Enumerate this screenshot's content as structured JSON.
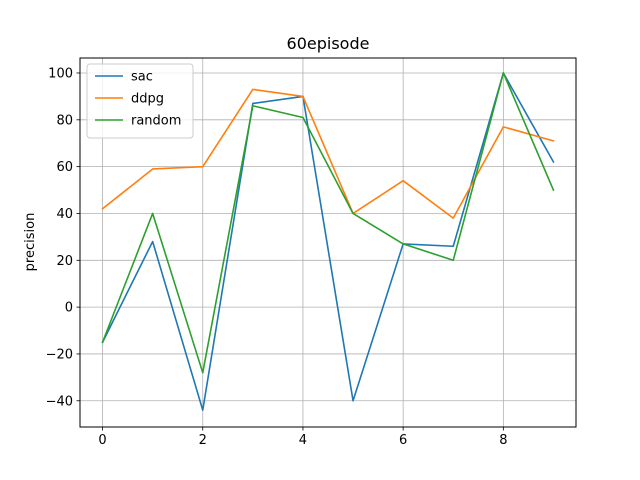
{
  "chart_data": {
    "type": "line",
    "title": "60episode",
    "xlabel": "",
    "ylabel": "precision",
    "x": [
      0,
      1,
      2,
      3,
      4,
      5,
      6,
      7,
      8,
      9
    ],
    "xlim": [
      -0.45,
      9.45
    ],
    "ylim": [
      -51.2,
      106.4
    ],
    "xticks": [
      0,
      2,
      4,
      6,
      8
    ],
    "yticks": [
      -40,
      -20,
      0,
      20,
      40,
      60,
      80,
      100
    ],
    "grid": true,
    "legend_position": "top-left",
    "series": [
      {
        "name": "sac",
        "color": "#1f77b4",
        "values": [
          -15,
          28,
          -44,
          87,
          90,
          -40,
          27,
          26,
          100,
          62
        ]
      },
      {
        "name": "ddpg",
        "color": "#ff7f0e",
        "values": [
          42,
          59,
          60,
          93,
          90,
          40,
          54,
          38,
          77,
          71
        ]
      },
      {
        "name": "random",
        "color": "#2ca02c",
        "values": [
          -15,
          40,
          -28,
          86,
          81,
          40,
          27,
          20,
          100,
          50
        ]
      }
    ]
  }
}
